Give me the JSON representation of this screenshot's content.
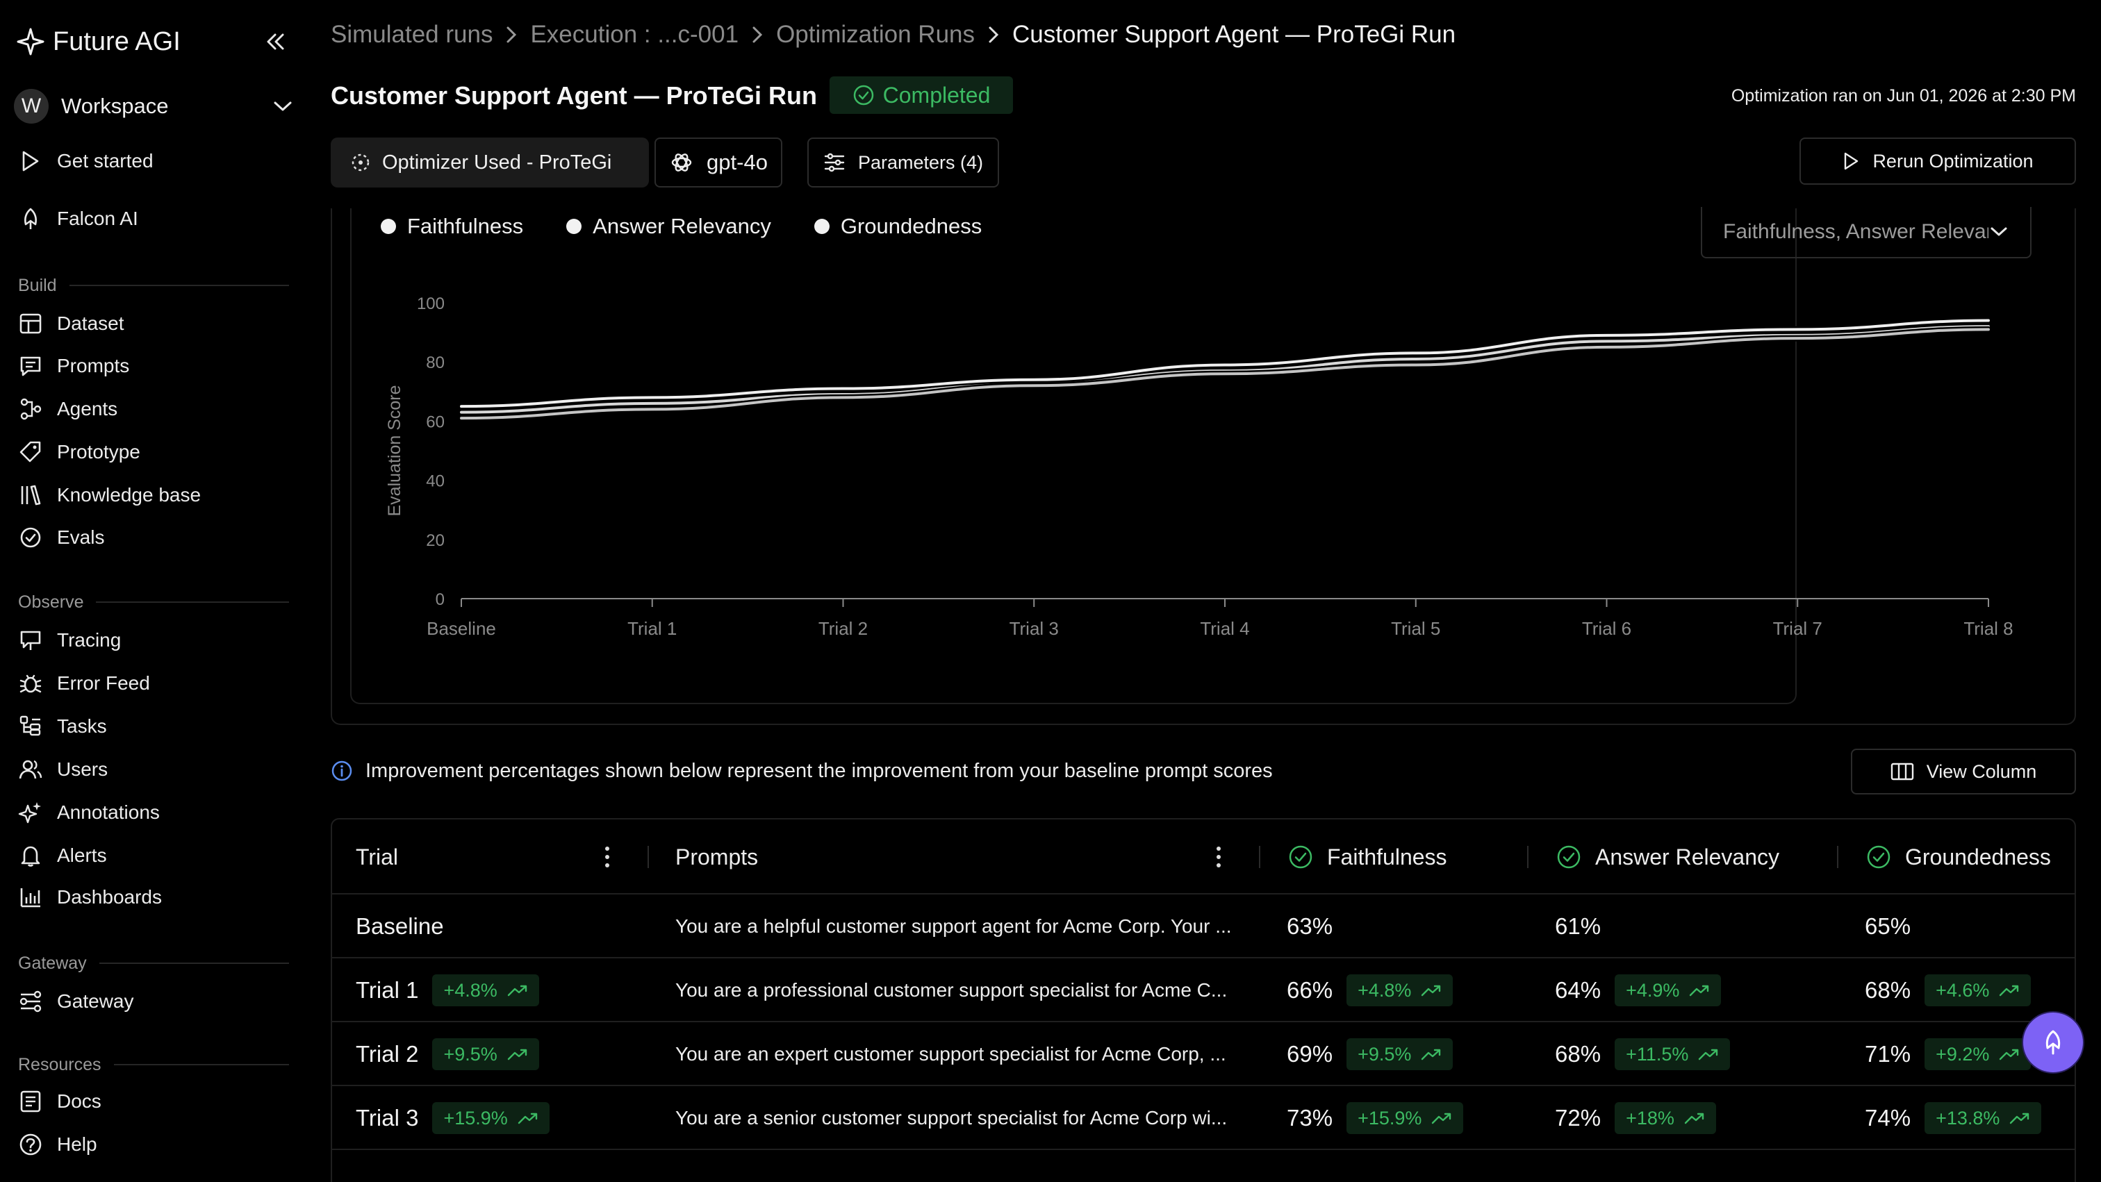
{
  "app": {
    "name": "Future AGI"
  },
  "workspace": {
    "initial": "W",
    "name": "Workspace"
  },
  "sidebar": {
    "top": [
      {
        "label": "Get started",
        "icon": "play-icon"
      },
      {
        "label": "Falcon AI",
        "icon": "falcon-icon"
      }
    ],
    "sections": [
      {
        "title": "Build",
        "items": [
          {
            "label": "Dataset",
            "icon": "table-icon"
          },
          {
            "label": "Prompts",
            "icon": "chat-icon"
          },
          {
            "label": "Agents",
            "icon": "agents-icon"
          },
          {
            "label": "Prototype",
            "icon": "tag-icon"
          },
          {
            "label": "Knowledge base",
            "icon": "library-icon"
          },
          {
            "label": "Evals",
            "icon": "check-circle-icon"
          }
        ]
      },
      {
        "title": "Observe",
        "items": [
          {
            "label": "Tracing",
            "icon": "tracing-icon"
          },
          {
            "label": "Error Feed",
            "icon": "bug-icon"
          },
          {
            "label": "Tasks",
            "icon": "tasks-icon"
          },
          {
            "label": "Users",
            "icon": "users-icon"
          },
          {
            "label": "Annotations",
            "icon": "sparkle-icon"
          },
          {
            "label": "Alerts",
            "icon": "bell-icon"
          },
          {
            "label": "Dashboards",
            "icon": "bar-chart-icon"
          }
        ]
      },
      {
        "title": "Gateway",
        "items": [
          {
            "label": "Gateway",
            "icon": "gateway-icon"
          }
        ]
      },
      {
        "title": "Resources",
        "items": [
          {
            "label": "Docs",
            "icon": "docs-icon"
          },
          {
            "label": "Help",
            "icon": "help-icon"
          }
        ]
      }
    ]
  },
  "breadcrumb": [
    "Simulated runs",
    "Execution : ...c-001",
    "Optimization Runs",
    "Customer Support Agent — ProTeGi Run"
  ],
  "header": {
    "title": "Customer Support Agent — ProTeGi Run",
    "status": "Completed",
    "ran_on": "Optimization ran on Jun 01, 2026 at 2:30 PM",
    "optimizer": "Optimizer Used - ProTeGi",
    "model": "gpt-4o",
    "parameters": "Parameters (4)",
    "rerun": "Rerun Optimization"
  },
  "metric_select": {
    "value": "Faithfulness, Answer Relevancy, Groundedness"
  },
  "chart_data": {
    "type": "line",
    "ylabel": "Evaluation Score",
    "xlabel": "",
    "ylim": [
      0,
      100
    ],
    "yticks": [
      0,
      20,
      40,
      60,
      80,
      100
    ],
    "categories": [
      "Baseline",
      "Trial 1",
      "Trial 2",
      "Trial 3",
      "Trial 4",
      "Trial 5",
      "Trial 6",
      "Trial 7",
      "Trial 8"
    ],
    "legend_position": "top-left",
    "grid": false,
    "series": [
      {
        "name": "Faithfulness",
        "values": [
          63,
          66,
          69,
          73,
          77,
          81,
          87,
          89,
          92
        ]
      },
      {
        "name": "Answer Relevancy",
        "values": [
          61,
          64,
          68,
          72,
          76,
          79,
          85,
          88,
          91
        ]
      },
      {
        "name": "Groundedness",
        "values": [
          65,
          68,
          71,
          74,
          79,
          83,
          89,
          91,
          94
        ]
      }
    ]
  },
  "info_text": "Improvement percentages shown below represent the improvement from your baseline prompt scores",
  "view_column": "View Column",
  "table": {
    "headers": {
      "trial": "Trial",
      "prompts": "Prompts",
      "m1": "Faithfulness",
      "m2": "Answer Relevancy",
      "m3": "Groundedness"
    },
    "rows": [
      {
        "trial": "Baseline",
        "delta": "",
        "prompt": "You are a helpful customer support agent for Acme Corp. Your ...",
        "m1": "63%",
        "d1": "",
        "m2": "61%",
        "d2": "",
        "m3": "65%",
        "d3": ""
      },
      {
        "trial": "Trial 1",
        "delta": "+4.8%",
        "prompt": "You are a professional customer support specialist for Acme C...",
        "m1": "66%",
        "d1": "+4.8%",
        "m2": "64%",
        "d2": "+4.9%",
        "m3": "68%",
        "d3": "+4.6%"
      },
      {
        "trial": "Trial 2",
        "delta": "+9.5%",
        "prompt": "You are an expert customer support specialist for Acme Corp, ...",
        "m1": "69%",
        "d1": "+9.5%",
        "m2": "68%",
        "d2": "+11.5%",
        "m3": "71%",
        "d3": "+9.2%"
      },
      {
        "trial": "Trial 3",
        "delta": "+15.9%",
        "prompt": "You are a senior customer support specialist for Acme Corp wi...",
        "m1": "73%",
        "d1": "+15.9%",
        "m2": "72%",
        "d2": "+18%",
        "m3": "74%",
        "d3": "+13.8%"
      }
    ]
  }
}
